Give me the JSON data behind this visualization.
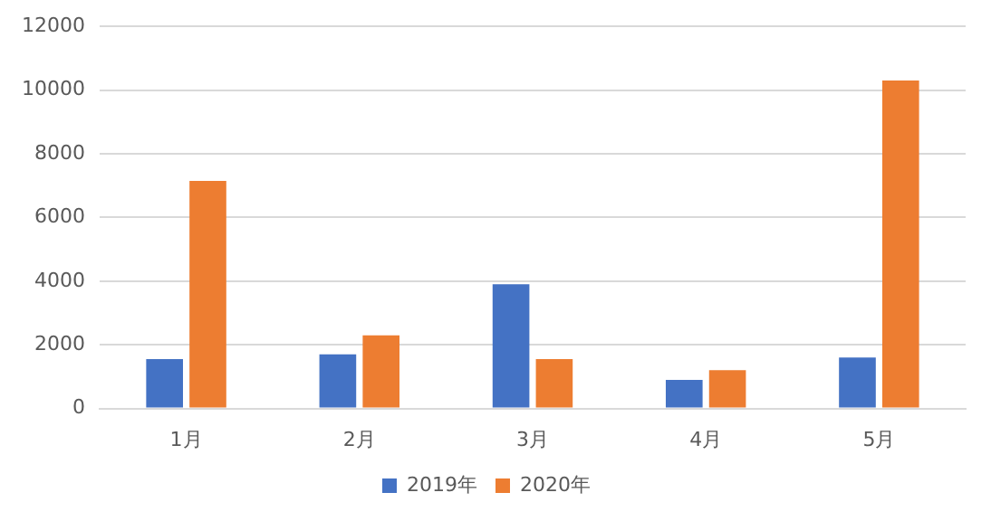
{
  "chart_data": {
    "type": "bar",
    "categories": [
      "1月",
      "2月",
      "3月",
      "4月",
      "5月"
    ],
    "series": [
      {
        "name": "2019年",
        "color": "#4472c4",
        "values": [
          1550,
          1700,
          3900,
          900,
          1600
        ]
      },
      {
        "name": "2020年",
        "color": "#ed7d31",
        "values": [
          7150,
          2300,
          1550,
          1200,
          10300
        ]
      }
    ],
    "ylim": [
      0,
      12000
    ],
    "yticks": [
      0,
      2000,
      4000,
      6000,
      8000,
      10000,
      12000
    ],
    "grid": "y",
    "legend": "bottom"
  }
}
